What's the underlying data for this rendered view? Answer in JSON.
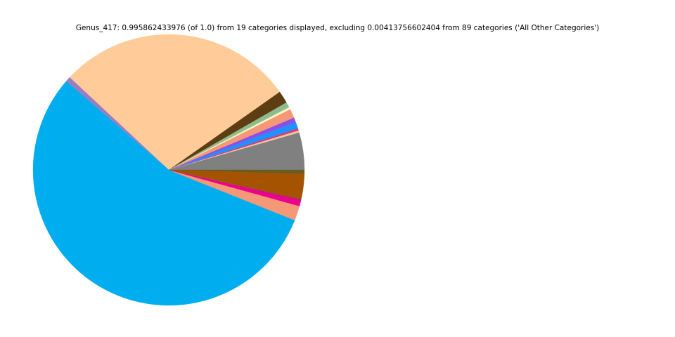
{
  "title": "Genus_417: 0.995862433976 (of 1.0) from 19 categories displayed, excluding 0.00413756602404 from 89 categories ('All Other Categories')",
  "chart_data": {
    "type": "pie",
    "title": "Genus_417: 0.995862433976 (of 1.0) from 19 categories displayed, excluding 0.00413756602404 from 89 categories ('All Other Categories')",
    "displayed_fraction": "0.995862433976",
    "displayed_of": "1.0",
    "displayed_categories": 19,
    "excluded_fraction": "0.00413756602404",
    "excluded_categories": 89,
    "excluded_label": "All Other Categories",
    "legend": "none",
    "slice_labels_shown": false,
    "start_angle_deg": 0,
    "direction": "counterclockwise",
    "slices": [
      {
        "name": "gray",
        "color": "#808080",
        "deg": 16.0,
        "fraction": 0.0444
      },
      {
        "name": "hairline-1",
        "color": "#9a9a9a",
        "deg": 0.05,
        "fraction": 0.0001
      },
      {
        "name": "tan",
        "color": "#e6cba5",
        "deg": 0.9,
        "fraction": 0.0025
      },
      {
        "name": "crimson",
        "color": "#e8336d",
        "deg": 0.85,
        "fraction": 0.0024
      },
      {
        "name": "dodger-blue",
        "color": "#1e90ff",
        "deg": 2.85,
        "fraction": 0.0079
      },
      {
        "name": "hairline-2",
        "color": "#4169e1",
        "deg": 0.05,
        "fraction": 0.0001
      },
      {
        "name": "violet",
        "color": "#8a4fe8",
        "deg": 2.0,
        "fraction": 0.0056
      },
      {
        "name": "dark-salmon",
        "color": "#f49878",
        "deg": 3.9,
        "fraction": 0.0108
      },
      {
        "name": "pale-yellow",
        "color": "#faf5c0",
        "deg": 1.0,
        "fraction": 0.0028
      },
      {
        "name": "dark-seagreen",
        "color": "#8fbc8f",
        "deg": 2.3,
        "fraction": 0.0064
      },
      {
        "name": "dark-brown",
        "color": "#5e3d12",
        "deg": 5.3,
        "fraction": 0.0147
      },
      {
        "name": "peach",
        "color": "#ffcc99",
        "deg": 101.7,
        "fraction": 0.2825
      },
      {
        "name": "medium-purple",
        "color": "#9b7ec2",
        "deg": 2.2,
        "fraction": 0.0061
      },
      {
        "name": "deep-sky-blue",
        "color": "#00aeef",
        "deg": 199.1,
        "fraction": 0.5531
      },
      {
        "name": "salmon",
        "color": "#f49878",
        "deg": 6.3,
        "fraction": 0.0175
      },
      {
        "name": "magenta",
        "color": "#ec008c",
        "deg": 2.6,
        "fraction": 0.0072
      },
      {
        "name": "dark-seam",
        "color": "#7b2c5e",
        "deg": 0.35,
        "fraction": 0.001
      },
      {
        "name": "brown",
        "color": "#a55300",
        "deg": 10.85,
        "fraction": 0.0301
      },
      {
        "name": "dark-olive",
        "color": "#6a5d1c",
        "deg": 1.7,
        "fraction": 0.0047
      }
    ],
    "geometry_note": "large blue slice lower-left, large peach slice top, fan of small slices on right side"
  }
}
